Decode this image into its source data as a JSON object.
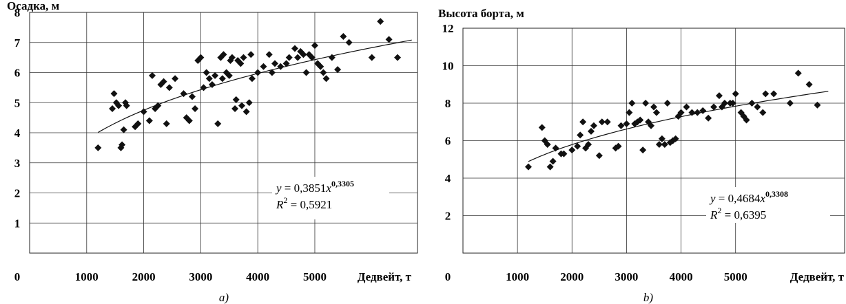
{
  "chart_data": [
    {
      "type": "scatter",
      "ylabel": "Осадка, м",
      "xlabel": "Дедвейт, т",
      "caption": "a)",
      "xlim": [
        0,
        6800
      ],
      "ylim": [
        0,
        8
      ],
      "xticks": [
        0,
        1000,
        2000,
        3000,
        4000,
        5000
      ],
      "xtick_labels": [
        "0",
        "1000",
        "2000",
        "3000",
        "4000",
        "5000"
      ],
      "yticks": [
        1,
        2,
        3,
        4,
        5,
        6,
        7,
        8
      ],
      "ytick_labels": [
        "1",
        "2",
        "3",
        "4",
        "5",
        "6",
        "7",
        "8"
      ],
      "grid": true,
      "trendline": {
        "type": "power",
        "a": 0.3851,
        "b": 0.3305,
        "x_from": 1200,
        "x_to": 6700
      },
      "equation": {
        "y_prefix": "y",
        "equals": " = 0,3851",
        "x_var": "x",
        "exponent": "0,3305",
        "r_prefix": "R",
        "r_power": "2",
        "r_value": " = 0,5921"
      },
      "points": [
        [
          1200,
          3.5
        ],
        [
          1450,
          4.8
        ],
        [
          1480,
          5.3
        ],
        [
          1520,
          5.0
        ],
        [
          1560,
          4.9
        ],
        [
          1600,
          3.5
        ],
        [
          1620,
          3.6
        ],
        [
          1650,
          4.1
        ],
        [
          1680,
          5.0
        ],
        [
          1700,
          4.9
        ],
        [
          1850,
          4.2
        ],
        [
          1900,
          4.3
        ],
        [
          2000,
          4.7
        ],
        [
          2100,
          4.4
        ],
        [
          2150,
          5.9
        ],
        [
          2200,
          4.8
        ],
        [
          2250,
          4.9
        ],
        [
          2300,
          5.6
        ],
        [
          2350,
          5.7
        ],
        [
          2400,
          4.3
        ],
        [
          2450,
          5.5
        ],
        [
          2550,
          5.8
        ],
        [
          2700,
          5.3
        ],
        [
          2750,
          4.5
        ],
        [
          2800,
          4.4
        ],
        [
          2850,
          5.2
        ],
        [
          2900,
          4.8
        ],
        [
          2950,
          6.4
        ],
        [
          3000,
          6.5
        ],
        [
          3050,
          5.5
        ],
        [
          3100,
          6.0
        ],
        [
          3150,
          5.8
        ],
        [
          3200,
          5.6
        ],
        [
          3250,
          5.9
        ],
        [
          3300,
          4.3
        ],
        [
          3350,
          6.5
        ],
        [
          3380,
          5.8
        ],
        [
          3400,
          6.6
        ],
        [
          3450,
          6.0
        ],
        [
          3500,
          5.9
        ],
        [
          3520,
          6.4
        ],
        [
          3550,
          6.5
        ],
        [
          3600,
          4.8
        ],
        [
          3620,
          5.1
        ],
        [
          3650,
          6.4
        ],
        [
          3700,
          6.3
        ],
        [
          3720,
          4.9
        ],
        [
          3750,
          6.5
        ],
        [
          3800,
          4.7
        ],
        [
          3850,
          5.0
        ],
        [
          3880,
          6.6
        ],
        [
          3900,
          5.8
        ],
        [
          4000,
          6.0
        ],
        [
          4100,
          6.2
        ],
        [
          4200,
          6.6
        ],
        [
          4250,
          6.0
        ],
        [
          4300,
          6.3
        ],
        [
          4400,
          6.2
        ],
        [
          4500,
          6.3
        ],
        [
          4550,
          6.5
        ],
        [
          4650,
          6.8
        ],
        [
          4700,
          6.5
        ],
        [
          4750,
          6.7
        ],
        [
          4800,
          6.6
        ],
        [
          4850,
          6.0
        ],
        [
          4900,
          6.6
        ],
        [
          4950,
          6.5
        ],
        [
          5000,
          6.9
        ],
        [
          5050,
          6.3
        ],
        [
          5100,
          6.2
        ],
        [
          5150,
          6.0
        ],
        [
          5200,
          5.8
        ],
        [
          5300,
          6.5
        ],
        [
          5400,
          6.1
        ],
        [
          5500,
          7.2
        ],
        [
          5600,
          7.0
        ],
        [
          6000,
          6.5
        ],
        [
          6150,
          7.7
        ],
        [
          6300,
          7.1
        ],
        [
          6450,
          6.5
        ]
      ]
    },
    {
      "type": "scatter",
      "ylabel": "Высота борта, м",
      "xlabel": "Дедвейт, т",
      "caption": "b)",
      "xlim": [
        0,
        7000
      ],
      "ylim": [
        0,
        12
      ],
      "xticks": [
        0,
        1000,
        2000,
        3000,
        4000,
        5000
      ],
      "xtick_labels": [
        "0",
        "1000",
        "2000",
        "3000",
        "4000",
        "5000"
      ],
      "yticks": [
        2,
        4,
        6,
        8,
        10,
        12
      ],
      "ytick_labels": [
        "2",
        "4",
        "6",
        "8",
        "10",
        "12"
      ],
      "grid": true,
      "trendline": {
        "type": "power",
        "a": 0.4684,
        "b": 0.3308,
        "x_from": 1200,
        "x_to": 6700
      },
      "equation": {
        "y_prefix": "y",
        "equals": " = 0,4684",
        "x_var": "x",
        "exponent": "0,3308",
        "r_prefix": "R",
        "r_power": "2",
        "r_value": " = 0,6395"
      },
      "points": [
        [
          1200,
          4.6
        ],
        [
          1450,
          6.7
        ],
        [
          1500,
          6.0
        ],
        [
          1550,
          5.8
        ],
        [
          1600,
          4.6
        ],
        [
          1650,
          4.9
        ],
        [
          1700,
          5.6
        ],
        [
          1800,
          5.3
        ],
        [
          1850,
          5.3
        ],
        [
          2000,
          5.5
        ],
        [
          2100,
          5.7
        ],
        [
          2150,
          6.3
        ],
        [
          2200,
          7.0
        ],
        [
          2250,
          5.6
        ],
        [
          2300,
          5.8
        ],
        [
          2350,
          6.5
        ],
        [
          2400,
          6.8
        ],
        [
          2500,
          5.2
        ],
        [
          2550,
          7.0
        ],
        [
          2650,
          7.0
        ],
        [
          2800,
          5.6
        ],
        [
          2850,
          5.7
        ],
        [
          2900,
          6.8
        ],
        [
          3000,
          6.9
        ],
        [
          3050,
          7.5
        ],
        [
          3100,
          8.0
        ],
        [
          3150,
          6.9
        ],
        [
          3200,
          7.0
        ],
        [
          3250,
          7.1
        ],
        [
          3300,
          5.5
        ],
        [
          3350,
          8.0
        ],
        [
          3400,
          7.0
        ],
        [
          3450,
          6.8
        ],
        [
          3500,
          7.8
        ],
        [
          3550,
          7.5
        ],
        [
          3600,
          5.8
        ],
        [
          3650,
          6.1
        ],
        [
          3700,
          5.8
        ],
        [
          3750,
          8.0
        ],
        [
          3800,
          5.9
        ],
        [
          3850,
          6.0
        ],
        [
          3900,
          6.1
        ],
        [
          3950,
          7.3
        ],
        [
          4000,
          7.5
        ],
        [
          4100,
          7.8
        ],
        [
          4200,
          7.5
        ],
        [
          4300,
          7.5
        ],
        [
          4400,
          7.6
        ],
        [
          4500,
          7.2
        ],
        [
          4600,
          7.8
        ],
        [
          4700,
          8.4
        ],
        [
          4750,
          7.8
        ],
        [
          4800,
          8.0
        ],
        [
          4900,
          8.0
        ],
        [
          4950,
          8.0
        ],
        [
          5000,
          8.5
        ],
        [
          5100,
          7.5
        ],
        [
          5150,
          7.3
        ],
        [
          5200,
          7.1
        ],
        [
          5300,
          8.0
        ],
        [
          5400,
          7.8
        ],
        [
          5500,
          7.5
        ],
        [
          5550,
          8.5
        ],
        [
          5700,
          8.5
        ],
        [
          6000,
          8.0
        ],
        [
          6150,
          9.6
        ],
        [
          6350,
          9.0
        ],
        [
          6500,
          7.9
        ]
      ]
    }
  ]
}
